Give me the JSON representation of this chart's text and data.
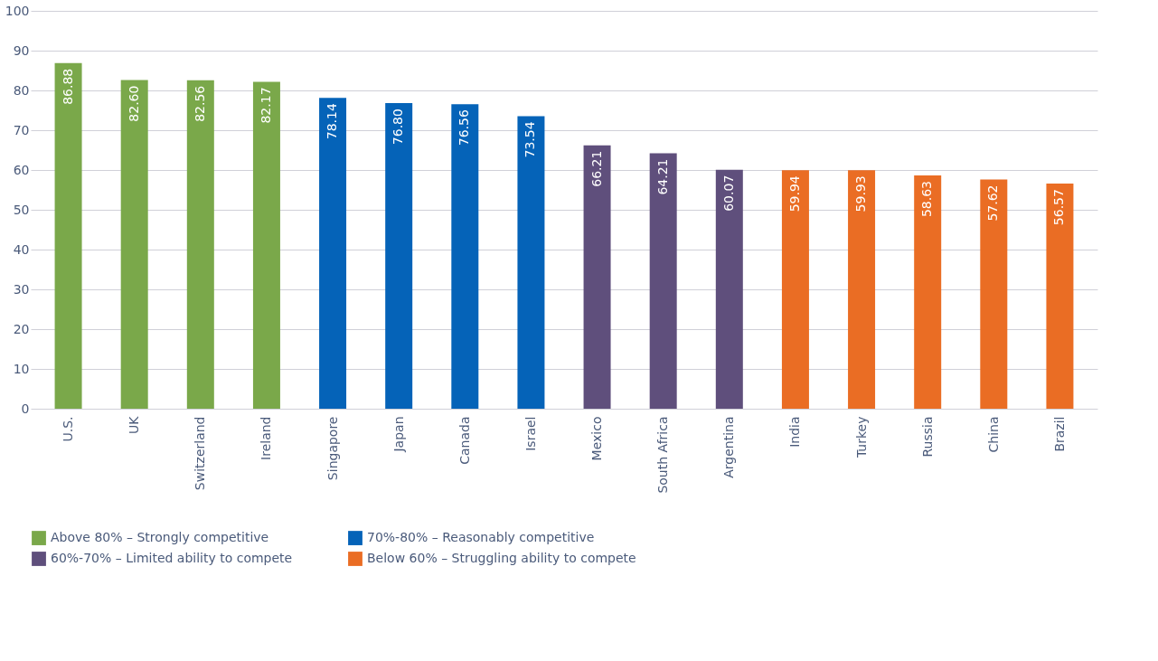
{
  "chart_data": {
    "type": "bar",
    "categories": [
      "U.S.",
      "UK",
      "Switzerland",
      "Ireland",
      "Singapore",
      "Japan",
      "Canada",
      "Israel",
      "Mexico",
      "South Africa",
      "Argentina",
      "India",
      "Turkey",
      "Russia",
      "China",
      "Brazil"
    ],
    "series": [
      {
        "name": "Above 80% – Strongly competitive",
        "color": "#7aa84a",
        "values": [
          86.88,
          82.6,
          82.56,
          82.17,
          null,
          null,
          null,
          null,
          null,
          null,
          null,
          null,
          null,
          null,
          null,
          null
        ],
        "value_labels": [
          "86.88",
          "82.60",
          "82.56",
          "82.17",
          null,
          null,
          null,
          null,
          null,
          null,
          null,
          null,
          null,
          null,
          null,
          null
        ]
      },
      {
        "name": "70%-80% – Reasonably competitive",
        "color": "#0563b8",
        "values": [
          null,
          null,
          null,
          null,
          78.14,
          76.8,
          76.56,
          73.54,
          null,
          null,
          null,
          null,
          null,
          null,
          null,
          null
        ],
        "value_labels": [
          null,
          null,
          null,
          null,
          "78.14",
          "76.80",
          "76.56",
          "73.54",
          null,
          null,
          null,
          null,
          null,
          null,
          null,
          null
        ]
      },
      {
        "name": "60%-70% – Limited ability to compete",
        "color": "#5f4f7c",
        "values": [
          null,
          null,
          null,
          null,
          null,
          null,
          null,
          null,
          66.21,
          64.21,
          60.07,
          null,
          null,
          null,
          null,
          null
        ],
        "value_labels": [
          null,
          null,
          null,
          null,
          null,
          null,
          null,
          null,
          "66.21",
          "64.21",
          "60.07",
          null,
          null,
          null,
          null,
          null
        ]
      },
      {
        "name": "Below 60% – Struggling ability to compete",
        "color": "#ea6d24",
        "values": [
          null,
          null,
          null,
          null,
          null,
          null,
          null,
          null,
          null,
          null,
          null,
          59.94,
          59.93,
          58.63,
          57.62,
          56.57
        ],
        "value_labels": [
          null,
          null,
          null,
          null,
          null,
          null,
          null,
          null,
          null,
          null,
          null,
          "59.94",
          "59.93",
          "58.63",
          "57.62",
          "56.57"
        ]
      }
    ],
    "ylim": [
      0,
      100
    ],
    "yticks": [
      0,
      10,
      20,
      30,
      40,
      50,
      60,
      70,
      80,
      90,
      100
    ],
    "grid": "y",
    "legend": "bottom"
  }
}
